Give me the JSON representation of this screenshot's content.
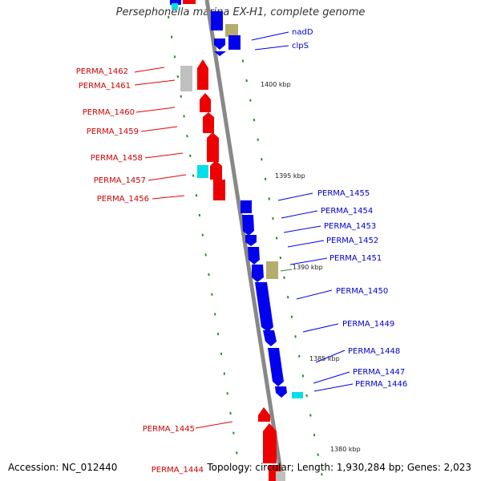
{
  "title": "Persephonella marina EX-H1, complete genome",
  "accession": "Accession: NC_012440",
  "summary": "Topology: circular; Length: 1,930,284 bp; Genes: 2,023",
  "colors": {
    "forward": "#ee0000",
    "reverse": "#0000ee",
    "other": "#00e0e8",
    "rna": "#b5ad6e",
    "pseudo": "#c0c0c0",
    "tick": "#2a8a2a",
    "backbone": "#888888"
  },
  "ticks": [
    "1400 kbp",
    "1395 kbp",
    "1390 kbp",
    "1385 kbp",
    "1380 kbp"
  ],
  "genes_left": [
    "PERMA_1462",
    "PERMA_1461",
    "PERMA_1460",
    "PERMA_1459",
    "PERMA_1458",
    "PERMA_1457",
    "PERMA_1456",
    "PERMA_1445",
    "PERMA_1444"
  ],
  "genes_right": [
    "nadD",
    "clpS",
    "PERMA_1455",
    "PERMA_1454",
    "PERMA_1453",
    "PERMA_1452",
    "PERMA_1451",
    "PERMA_1450",
    "PERMA_1449",
    "PERMA_1448",
    "PERMA_1447",
    "PERMA_1446"
  ]
}
